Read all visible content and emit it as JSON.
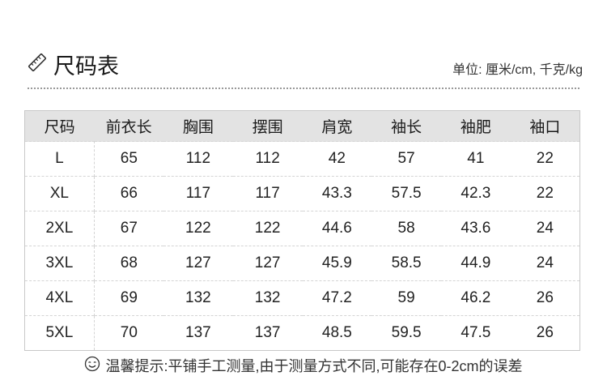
{
  "header": {
    "title": "尺码表",
    "title_icon": "ruler-icon",
    "unit": "单位: 厘米/cm, 千克/kg"
  },
  "table": {
    "columns": [
      "尺码",
      "前衣长",
      "胸围",
      "摆围",
      "肩宽",
      "袖长",
      "袖肥",
      "袖口"
    ],
    "rows": [
      [
        "L",
        "65",
        "112",
        "112",
        "42",
        "57",
        "41",
        "22"
      ],
      [
        "XL",
        "66",
        "117",
        "117",
        "43.3",
        "57.5",
        "42.3",
        "22"
      ],
      [
        "2XL",
        "67",
        "122",
        "122",
        "44.6",
        "58",
        "43.6",
        "24"
      ],
      [
        "3XL",
        "68",
        "127",
        "127",
        "45.9",
        "58.5",
        "44.9",
        "24"
      ],
      [
        "4XL",
        "69",
        "132",
        "132",
        "47.2",
        "59",
        "46.2",
        "26"
      ],
      [
        "5XL",
        "70",
        "137",
        "137",
        "48.5",
        "59.5",
        "47.5",
        "26"
      ]
    ]
  },
  "footer": {
    "icon": "smiley-icon",
    "tip": "温馨提示:平铺手工测量,由于测量方式不同,可能存在0-2cm的误差"
  }
}
